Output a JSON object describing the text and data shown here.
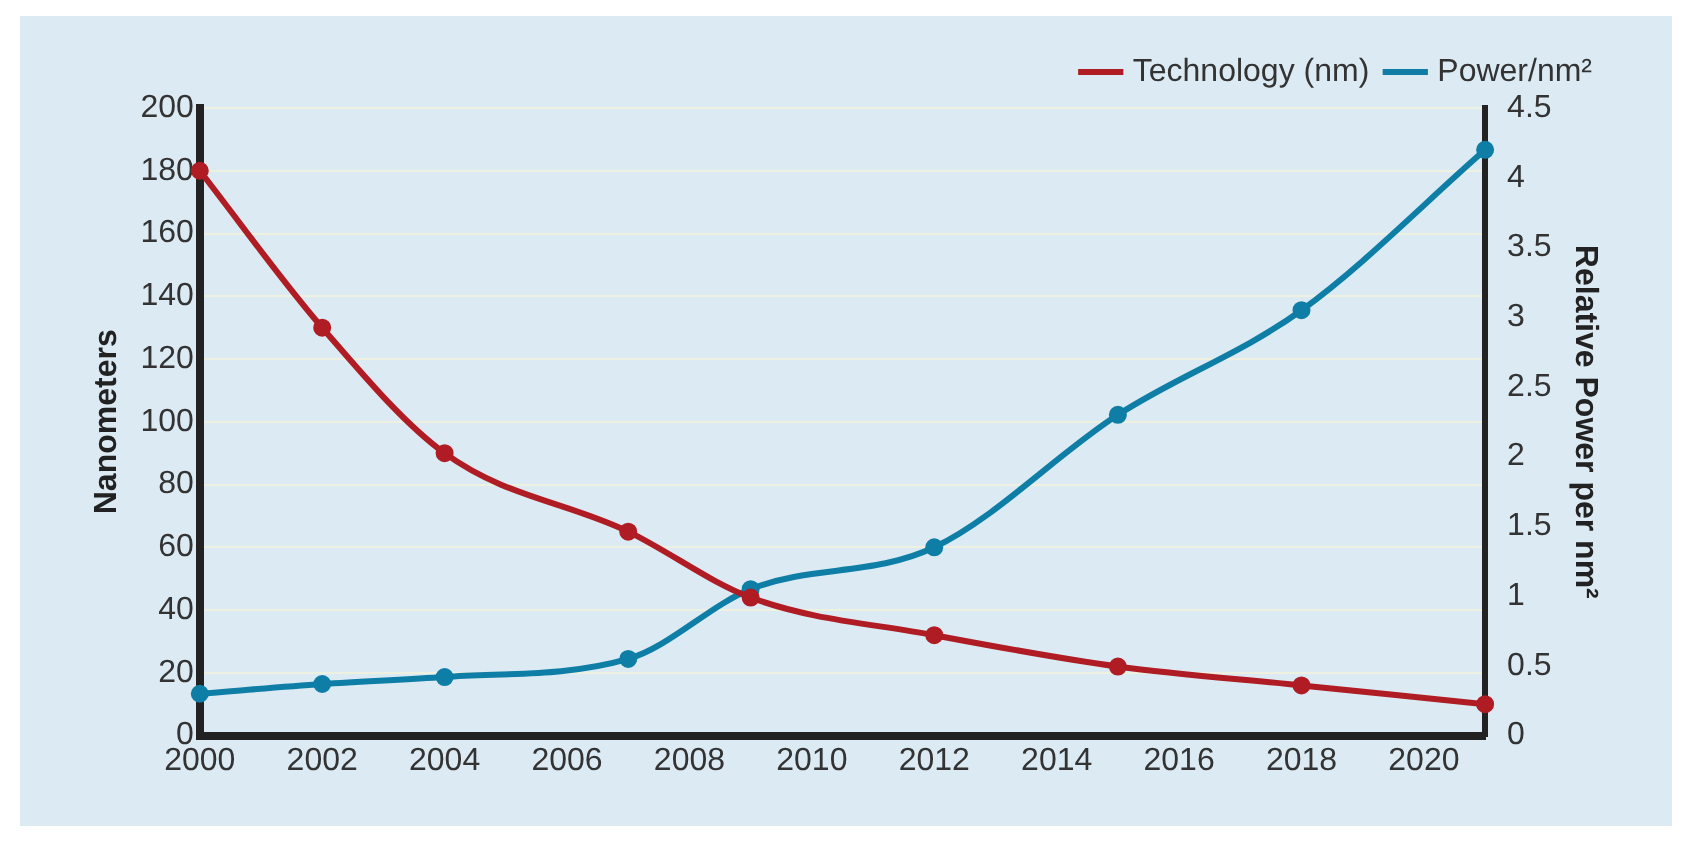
{
  "chart_data": {
    "type": "line",
    "x": [
      2000,
      2002,
      2004,
      2007,
      2009,
      2012,
      2015,
      2018,
      2021
    ],
    "xlim": [
      2000,
      2021
    ],
    "xticks": [
      2000,
      2002,
      2004,
      2006,
      2008,
      2010,
      2012,
      2014,
      2016,
      2018,
      2020
    ],
    "ylabel": "Nanometers",
    "ylim": [
      0,
      200
    ],
    "yticks": [
      0,
      20,
      40,
      60,
      80,
      100,
      120,
      140,
      160,
      180,
      200
    ],
    "y2label": "Relative Power per nm²",
    "y2lim": [
      0,
      4.5
    ],
    "y2ticks": [
      0,
      0.5,
      1,
      1.5,
      2,
      2.5,
      3,
      3.5,
      4,
      4.5
    ],
    "series": [
      {
        "name": "Technology (nm)",
        "color": "#b01c24",
        "values": [
          180,
          130,
          90,
          65,
          44,
          32,
          22,
          16,
          10
        ]
      },
      {
        "name": "Power/nm²",
        "color": "#0f7ea6",
        "axis": "y2",
        "values": [
          0.3,
          0.37,
          0.42,
          0.55,
          1.05,
          1.35,
          2.3,
          3.05,
          4.2
        ]
      }
    ],
    "grid": "y",
    "legend": "top right",
    "marker": "circle"
  }
}
